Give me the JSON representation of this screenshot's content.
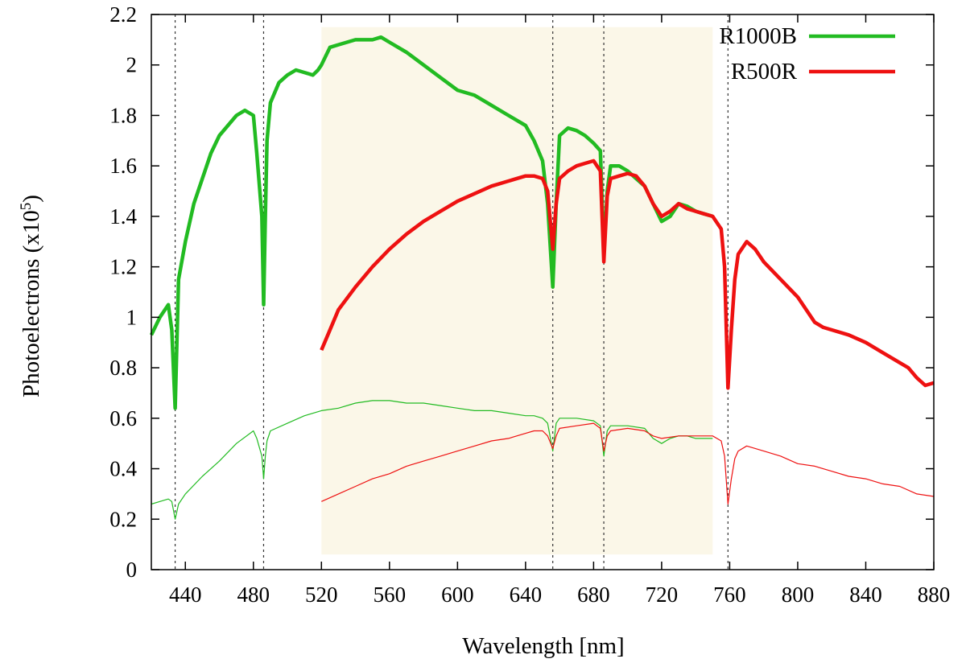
{
  "chart_data": {
    "type": "line",
    "xlabel": "Wavelength [nm]",
    "ylabel": "Photoelectrons (x10",
    "ylabel_exp": "5",
    "ylabel_close": ")",
    "xlim": [
      420,
      880
    ],
    "ylim": [
      0,
      2.2
    ],
    "xticks": [
      "440",
      "480",
      "520",
      "560",
      "600",
      "640",
      "680",
      "720",
      "760",
      "800",
      "840",
      "880"
    ],
    "yticks": [
      "0",
      "0.2",
      "0.4",
      "0.6",
      "0.8",
      "1",
      "1.2",
      "1.4",
      "1.6",
      "1.8",
      "2",
      "2.2"
    ],
    "grid": false,
    "legend_position": "top-right",
    "shaded_region": [
      520,
      750
    ],
    "vlines": [
      434,
      486,
      656,
      686,
      759
    ],
    "colors": {
      "green": "#22bb22",
      "red": "#ee1111",
      "shade": "#fbf7e8"
    },
    "series": [
      {
        "name": "R1000B",
        "style": "thick",
        "x": [
          420,
          425,
          430,
          432,
          434,
          436,
          440,
          445,
          450,
          455,
          460,
          465,
          470,
          475,
          480,
          482,
          485,
          486,
          487,
          488,
          490,
          495,
          500,
          505,
          510,
          515,
          518,
          520,
          525,
          530,
          540,
          550,
          555,
          560,
          570,
          580,
          590,
          600,
          610,
          620,
          630,
          640,
          645,
          650,
          653,
          656,
          658,
          660,
          665,
          670,
          675,
          680,
          684,
          686,
          688,
          690,
          695,
          700,
          705,
          710,
          715,
          720,
          725,
          730,
          735,
          740,
          745,
          750
        ],
        "y": [
          0.93,
          1.0,
          1.05,
          0.95,
          0.64,
          1.15,
          1.3,
          1.45,
          1.55,
          1.65,
          1.72,
          1.76,
          1.8,
          1.82,
          1.8,
          1.65,
          1.4,
          1.05,
          1.4,
          1.7,
          1.85,
          1.93,
          1.96,
          1.98,
          1.97,
          1.96,
          1.98,
          2.0,
          2.07,
          2.08,
          2.1,
          2.1,
          2.11,
          2.09,
          2.05,
          2.0,
          1.95,
          1.9,
          1.88,
          1.84,
          1.8,
          1.76,
          1.7,
          1.62,
          1.45,
          1.12,
          1.45,
          1.72,
          1.75,
          1.74,
          1.72,
          1.69,
          1.66,
          1.25,
          1.5,
          1.6,
          1.6,
          1.58,
          1.55,
          1.52,
          1.45,
          1.38,
          1.4,
          1.45,
          1.44,
          1.42,
          1.41,
          1.4
        ]
      },
      {
        "name": "R500R",
        "style": "thick",
        "x": [
          520,
          525,
          530,
          540,
          550,
          560,
          570,
          580,
          590,
          600,
          610,
          620,
          630,
          640,
          645,
          650,
          653,
          656,
          658,
          660,
          665,
          670,
          675,
          680,
          684,
          686,
          688,
          690,
          695,
          700,
          705,
          710,
          715,
          720,
          725,
          730,
          735,
          740,
          745,
          750,
          755,
          757,
          759,
          761,
          763,
          765,
          770,
          775,
          780,
          790,
          800,
          810,
          815,
          820,
          830,
          840,
          850,
          860,
          865,
          870,
          875,
          880
        ],
        "y": [
          0.87,
          0.95,
          1.03,
          1.12,
          1.2,
          1.27,
          1.33,
          1.38,
          1.42,
          1.46,
          1.49,
          1.52,
          1.54,
          1.56,
          1.56,
          1.55,
          1.5,
          1.27,
          1.45,
          1.55,
          1.58,
          1.6,
          1.61,
          1.62,
          1.58,
          1.22,
          1.48,
          1.55,
          1.56,
          1.57,
          1.56,
          1.52,
          1.45,
          1.4,
          1.42,
          1.45,
          1.43,
          1.42,
          1.41,
          1.4,
          1.35,
          1.2,
          0.72,
          0.95,
          1.15,
          1.25,
          1.3,
          1.27,
          1.22,
          1.15,
          1.08,
          0.98,
          0.96,
          0.95,
          0.93,
          0.9,
          0.86,
          0.82,
          0.8,
          0.76,
          0.73,
          0.74
        ]
      },
      {
        "name": "",
        "style": "thin-green",
        "x": [
          420,
          425,
          430,
          432,
          434,
          436,
          440,
          450,
          460,
          470,
          480,
          482,
          485,
          486,
          487,
          488,
          490,
          500,
          510,
          520,
          530,
          540,
          550,
          560,
          570,
          580,
          590,
          600,
          610,
          620,
          630,
          640,
          645,
          650,
          653,
          656,
          658,
          660,
          670,
          680,
          684,
          686,
          688,
          690,
          700,
          710,
          715,
          720,
          725,
          730,
          735,
          740,
          745,
          750
        ],
        "y": [
          0.26,
          0.27,
          0.28,
          0.27,
          0.2,
          0.26,
          0.3,
          0.37,
          0.43,
          0.5,
          0.55,
          0.52,
          0.45,
          0.36,
          0.45,
          0.51,
          0.55,
          0.58,
          0.61,
          0.63,
          0.64,
          0.66,
          0.67,
          0.67,
          0.66,
          0.66,
          0.65,
          0.64,
          0.63,
          0.63,
          0.62,
          0.61,
          0.61,
          0.6,
          0.58,
          0.47,
          0.58,
          0.6,
          0.6,
          0.59,
          0.57,
          0.45,
          0.55,
          0.57,
          0.57,
          0.56,
          0.52,
          0.5,
          0.52,
          0.53,
          0.53,
          0.52,
          0.52,
          0.52
        ]
      },
      {
        "name": "",
        "style": "thin-red",
        "x": [
          520,
          530,
          540,
          550,
          560,
          570,
          580,
          590,
          600,
          610,
          620,
          630,
          640,
          645,
          650,
          653,
          656,
          658,
          660,
          670,
          680,
          684,
          686,
          688,
          690,
          700,
          710,
          715,
          720,
          730,
          740,
          750,
          755,
          757,
          759,
          761,
          763,
          765,
          770,
          780,
          790,
          800,
          810,
          820,
          830,
          840,
          850,
          860,
          870,
          880
        ],
        "y": [
          0.27,
          0.3,
          0.33,
          0.36,
          0.38,
          0.41,
          0.43,
          0.45,
          0.47,
          0.49,
          0.51,
          0.52,
          0.54,
          0.55,
          0.55,
          0.53,
          0.48,
          0.53,
          0.56,
          0.57,
          0.58,
          0.56,
          0.47,
          0.53,
          0.55,
          0.56,
          0.55,
          0.53,
          0.52,
          0.53,
          0.53,
          0.53,
          0.51,
          0.45,
          0.26,
          0.36,
          0.44,
          0.47,
          0.49,
          0.47,
          0.45,
          0.42,
          0.41,
          0.39,
          0.37,
          0.36,
          0.34,
          0.33,
          0.3,
          0.29
        ]
      }
    ]
  }
}
